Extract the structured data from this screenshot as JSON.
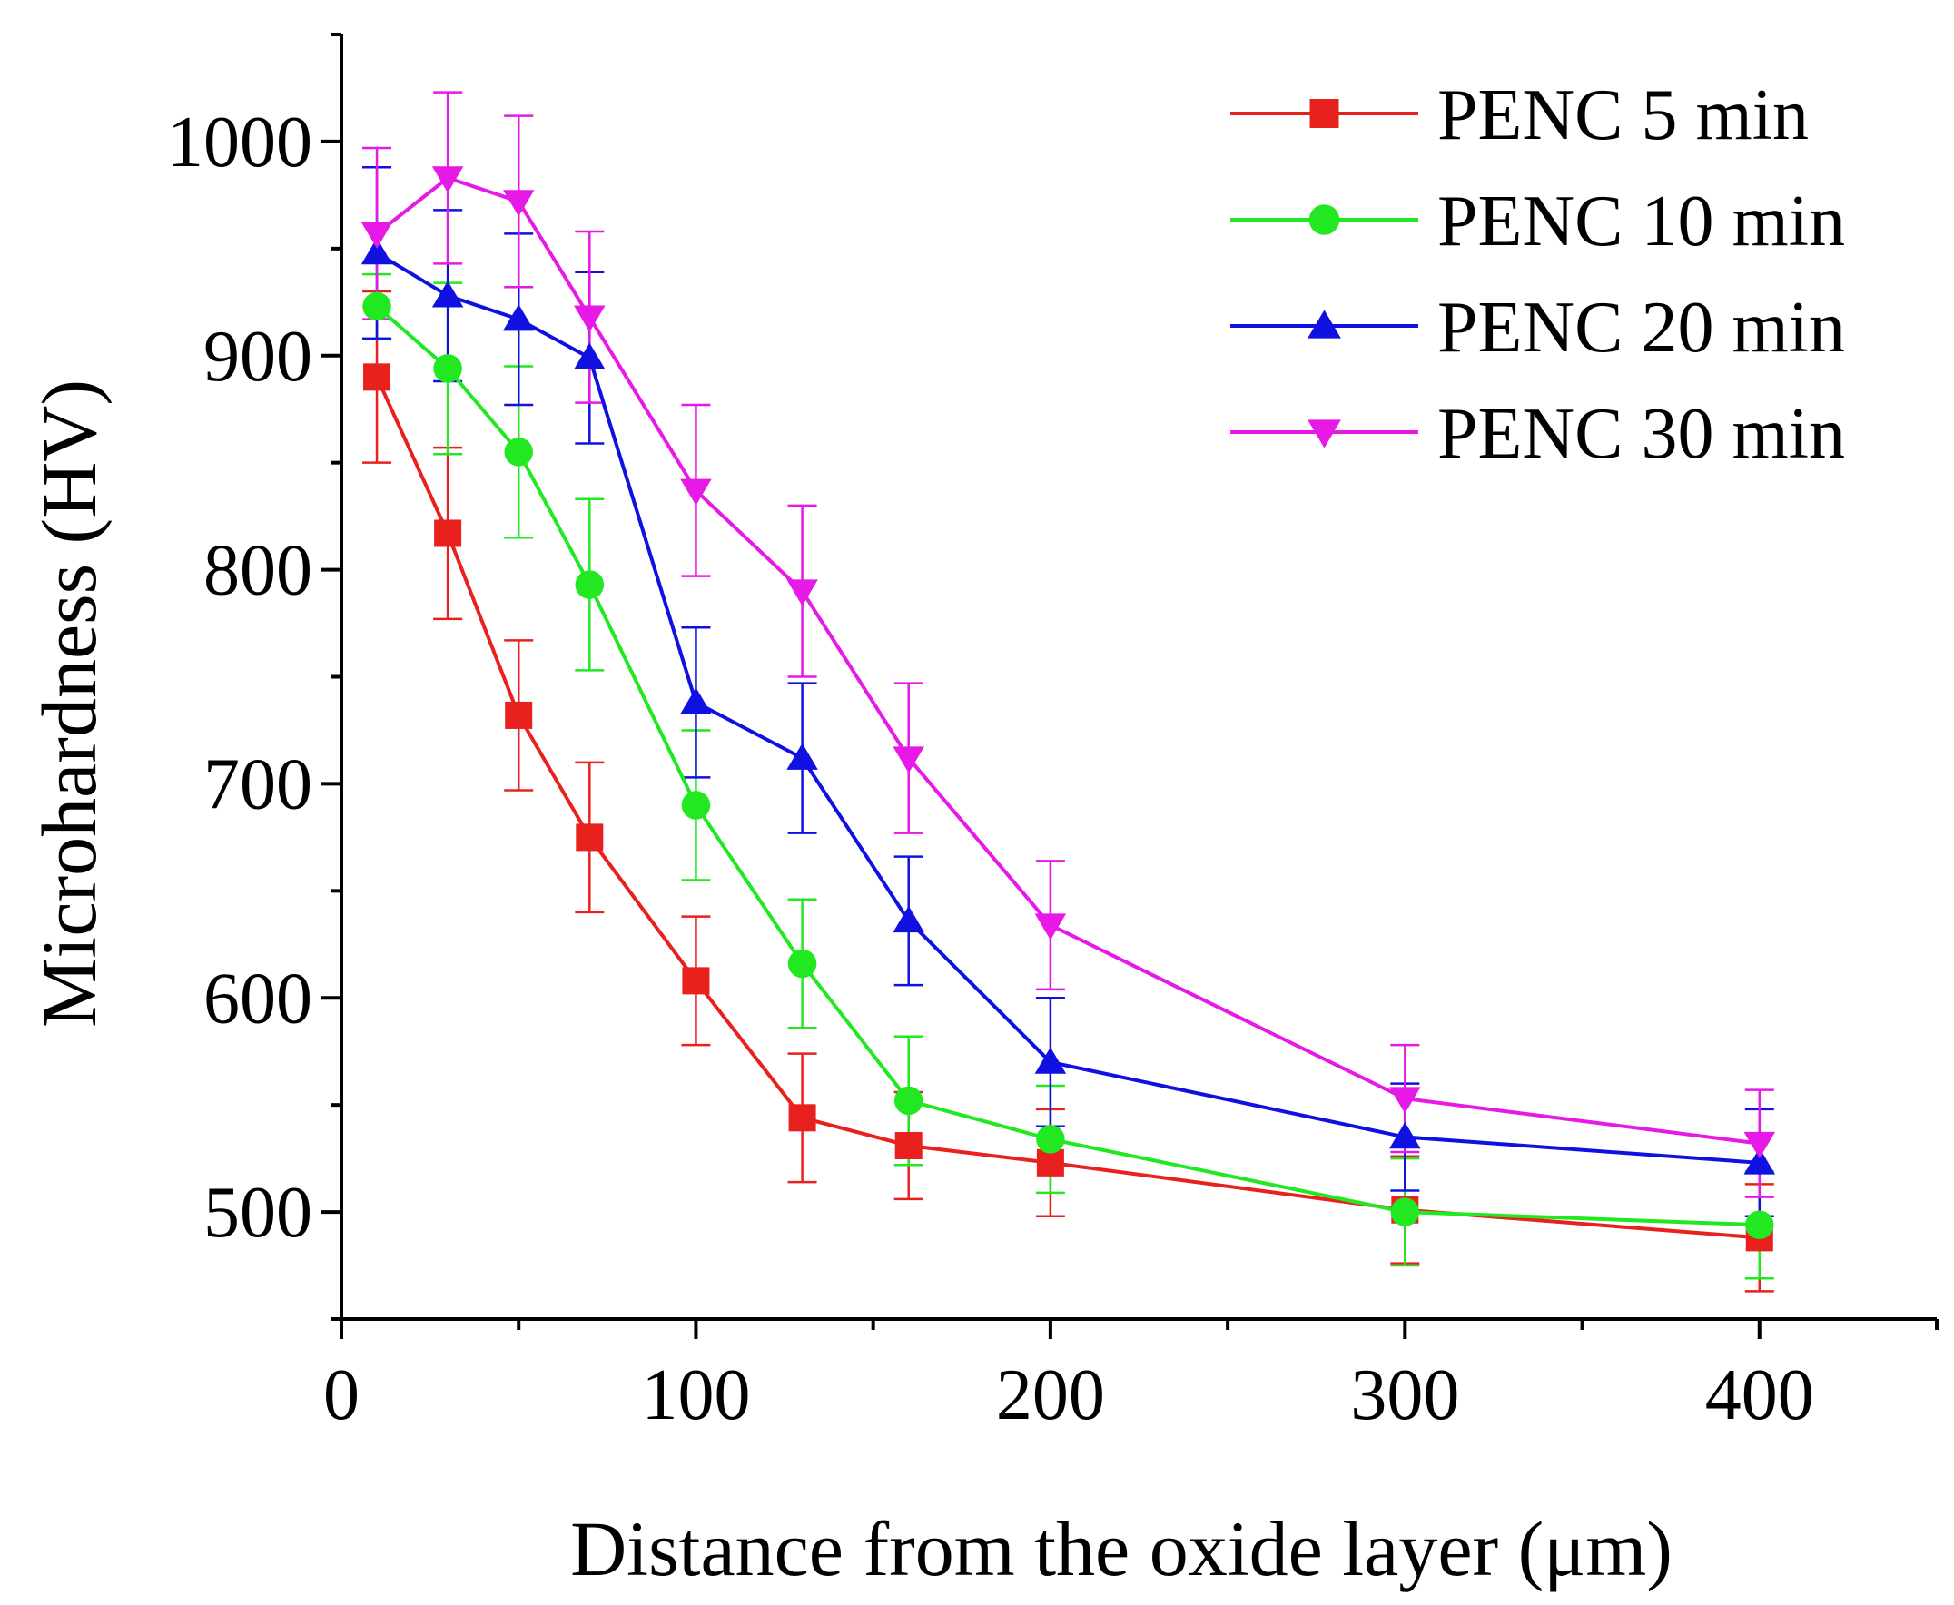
{
  "chart_data": {
    "type": "line",
    "title": "",
    "xlabel": "Distance from the oxide layer (μm)",
    "ylabel": "Microhardness (HV)",
    "xlim": [
      0,
      450
    ],
    "ylim": [
      450,
      1050
    ],
    "xticks": [
      0,
      100,
      200,
      300,
      400
    ],
    "xtick_labels": [
      "0",
      "100",
      "200",
      "300",
      "400"
    ],
    "yticks": [
      500,
      600,
      700,
      800,
      900,
      1000
    ],
    "ytick_labels": [
      "500",
      "600",
      "700",
      "800",
      "900",
      "1000"
    ],
    "legend_position": "top-right",
    "grid": false,
    "x": [
      10,
      30,
      50,
      70,
      100,
      130,
      160,
      200,
      300,
      400
    ],
    "series": [
      {
        "name": "PENC 5 min",
        "color": "#e8201e",
        "marker": "square",
        "values": [
          890,
          817,
          732,
          675,
          608,
          544,
          531,
          523,
          501,
          488
        ],
        "errors": [
          40,
          40,
          35,
          35,
          30,
          30,
          25,
          25,
          25,
          25
        ]
      },
      {
        "name": "PENC 10 min",
        "color": "#22e822",
        "marker": "circle",
        "values": [
          923,
          894,
          855,
          793,
          690,
          616,
          552,
          534,
          500,
          494
        ],
        "errors": [
          15,
          40,
          40,
          40,
          35,
          30,
          30,
          25,
          25,
          25
        ]
      },
      {
        "name": "PENC 20 min",
        "color": "#1010e0",
        "marker": "triangle-up",
        "values": [
          948,
          928,
          917,
          899,
          738,
          712,
          636,
          570,
          535,
          523
        ],
        "errors": [
          40,
          40,
          40,
          40,
          35,
          35,
          30,
          30,
          25,
          25
        ]
      },
      {
        "name": "PENC 30 min",
        "color": "#e619e6",
        "marker": "triangle-down",
        "values": [
          957,
          983,
          972,
          918,
          837,
          790,
          712,
          634,
          553,
          532
        ],
        "errors": [
          40,
          40,
          40,
          40,
          40,
          40,
          35,
          30,
          25,
          25
        ]
      }
    ]
  }
}
